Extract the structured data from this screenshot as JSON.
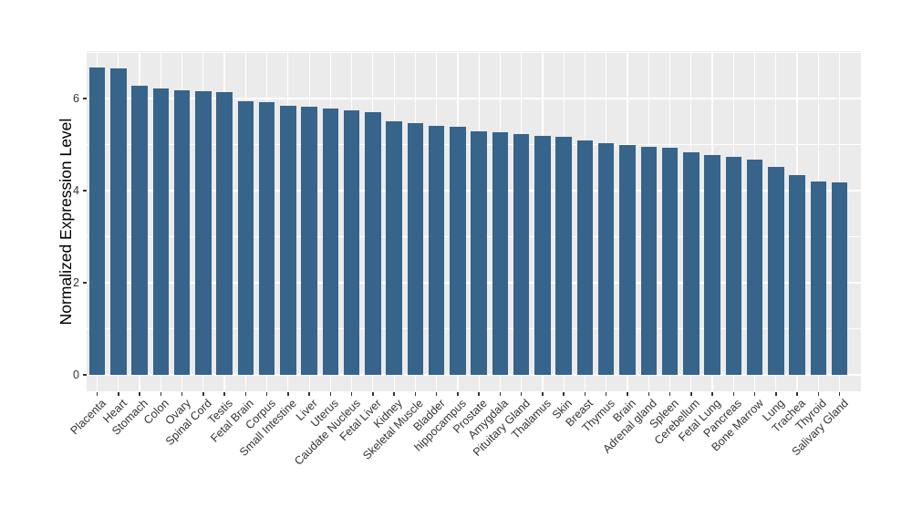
{
  "chart_data": {
    "type": "bar",
    "title": "",
    "xlabel": "",
    "ylabel": "Normalized Expression Level",
    "categories": [
      "Placenta",
      "Heart",
      "Stomach",
      "Colon",
      "Ovary",
      "Spinal Cord",
      "Testis",
      "Fetal Brain",
      "Corpus",
      "Small Intestine",
      "Liver",
      "Uterus",
      "Caudate Nucleus",
      "Fetal Liver",
      "Kidney",
      "Skeletal Muscle",
      "Bladder",
      "hippocampus",
      "Prostate",
      "Amygdala",
      "Pituitary Gland",
      "Thalamus",
      "Skin",
      "Breast",
      "Thymus",
      "Brain",
      "Adrenal gland",
      "Spleen",
      "Cerebellum",
      "Fetal Lung",
      "Pancreas",
      "Bone Marrow",
      "Lung",
      "Trachea",
      "Thyroid",
      "Salivary Gland"
    ],
    "values": [
      6.67,
      6.65,
      6.27,
      6.21,
      6.17,
      6.15,
      6.14,
      5.94,
      5.92,
      5.84,
      5.82,
      5.79,
      5.74,
      5.71,
      5.51,
      5.46,
      5.4,
      5.38,
      5.28,
      5.27,
      5.23,
      5.18,
      5.16,
      5.09,
      5.02,
      5.0,
      4.95,
      4.94,
      4.83,
      4.78,
      4.73,
      4.67,
      4.51,
      4.34,
      4.2,
      4.17
    ],
    "y_ticks": [
      0,
      2,
      4,
      6
    ],
    "y_minor_ticks": [
      1,
      3,
      5,
      7
    ],
    "ylim": [
      0,
      7.03
    ],
    "x_label_rotation": 45,
    "grid": true,
    "legend": false,
    "bar_color": "#36648B",
    "panel_background": "#EBEBEB",
    "grid_color": "#FFFFFF",
    "tick_mark_color": "#333333",
    "axis_text_color": "#333333",
    "axis_title_color": "#000000"
  }
}
